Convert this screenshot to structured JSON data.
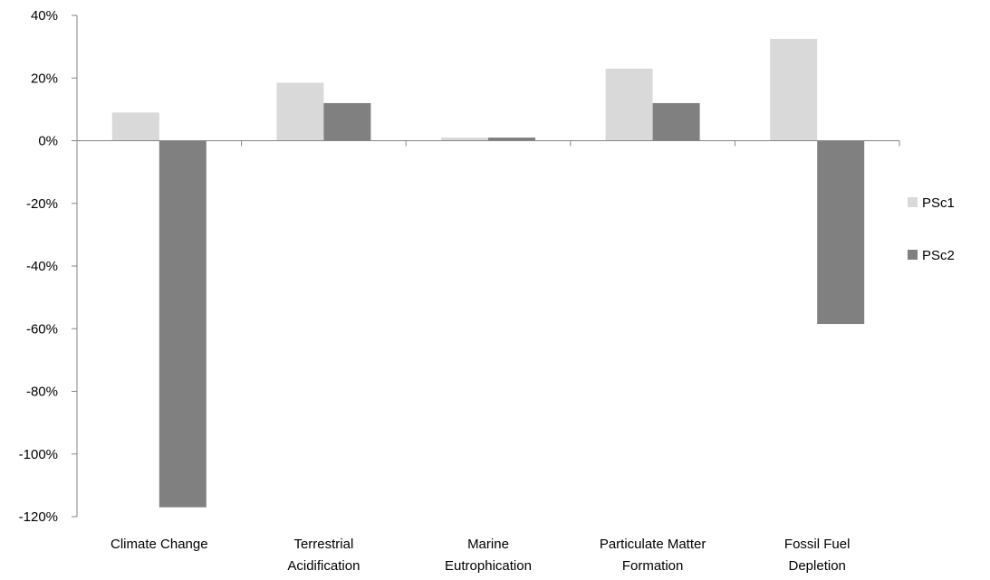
{
  "chart_data": {
    "type": "bar",
    "title": "",
    "xlabel": "",
    "ylabel": "",
    "ylim": [
      -120,
      40
    ],
    "y_ticks": [
      "40%",
      "20%",
      "0%",
      "-20%",
      "-40%",
      "-60%",
      "-80%",
      "-100%",
      "-120%"
    ],
    "y_tick_values": [
      40,
      20,
      0,
      -20,
      -40,
      -60,
      -80,
      -100,
      -120
    ],
    "categories": [
      [
        "Climate Change"
      ],
      [
        "Terrestrial",
        "Acidification"
      ],
      [
        "Marine",
        "Eutrophication"
      ],
      [
        "Particulate Matter",
        "Formation"
      ],
      [
        "Fossil Fuel",
        "Depletion"
      ]
    ],
    "series": [
      {
        "name": "PSc1",
        "color": "#d9d9d9",
        "values": [
          9,
          18.5,
          1,
          23,
          32.5
        ]
      },
      {
        "name": "PSc2",
        "color": "#808080",
        "values": [
          -117,
          12,
          1,
          12,
          -58.5
        ]
      }
    ],
    "grid": false,
    "legend": "right"
  }
}
